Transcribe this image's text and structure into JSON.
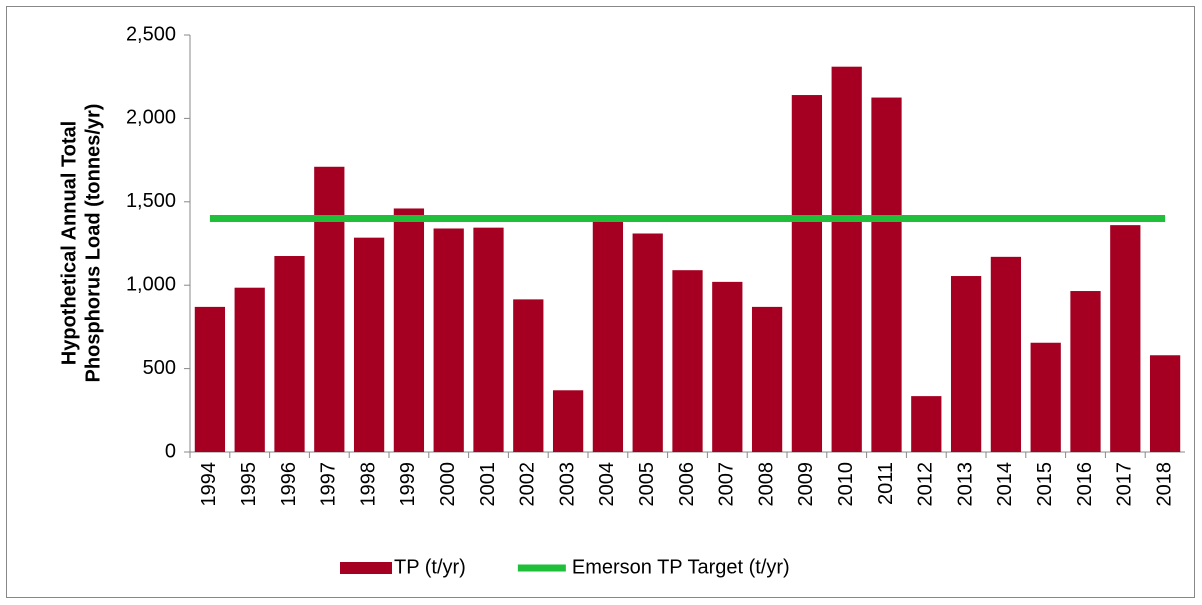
{
  "chart_data": {
    "type": "bar",
    "ylabel": [
      "Hypothetical Annual Total",
      "Phosphorus Load (tonnes/yr)"
    ],
    "categories": [
      "1994",
      "1995",
      "1996",
      "1997",
      "1998",
      "1999",
      "2000",
      "2001",
      "2002",
      "2003",
      "2004",
      "2005",
      "2006",
      "2007",
      "2008",
      "2009",
      "2010",
      "2011",
      "2012",
      "2013",
      "2014",
      "2015",
      "2016",
      "2017",
      "2018"
    ],
    "series": [
      {
        "name": "TP (t/yr)",
        "color": "#a50021",
        "type": "bar",
        "values": [
          870,
          985,
          1175,
          1710,
          1285,
          1460,
          1340,
          1345,
          915,
          370,
          1400,
          1310,
          1090,
          1020,
          870,
          2140,
          2310,
          2125,
          335,
          1055,
          1170,
          655,
          965,
          1360,
          580
        ]
      },
      {
        "name": "Emerson TP Target (t/yr)",
        "color": "#1fbf3a",
        "type": "line",
        "values": [
          1400,
          1400,
          1400,
          1400,
          1400,
          1400,
          1400,
          1400,
          1400,
          1400,
          1400,
          1400,
          1400,
          1400,
          1400,
          1400,
          1400,
          1400,
          1400,
          1400,
          1400,
          1400,
          1400,
          1400,
          1400
        ]
      }
    ],
    "ylim": [
      0,
      2500
    ],
    "yticks": [
      0,
      500,
      {
        "value": 1000,
        "label": "1,000"
      },
      {
        "value": 1500,
        "label": "1,500"
      },
      {
        "value": 2000,
        "label": "2,000"
      },
      {
        "value": 2500,
        "label": "2,500"
      }
    ],
    "grid": false,
    "legend": "bottom"
  }
}
